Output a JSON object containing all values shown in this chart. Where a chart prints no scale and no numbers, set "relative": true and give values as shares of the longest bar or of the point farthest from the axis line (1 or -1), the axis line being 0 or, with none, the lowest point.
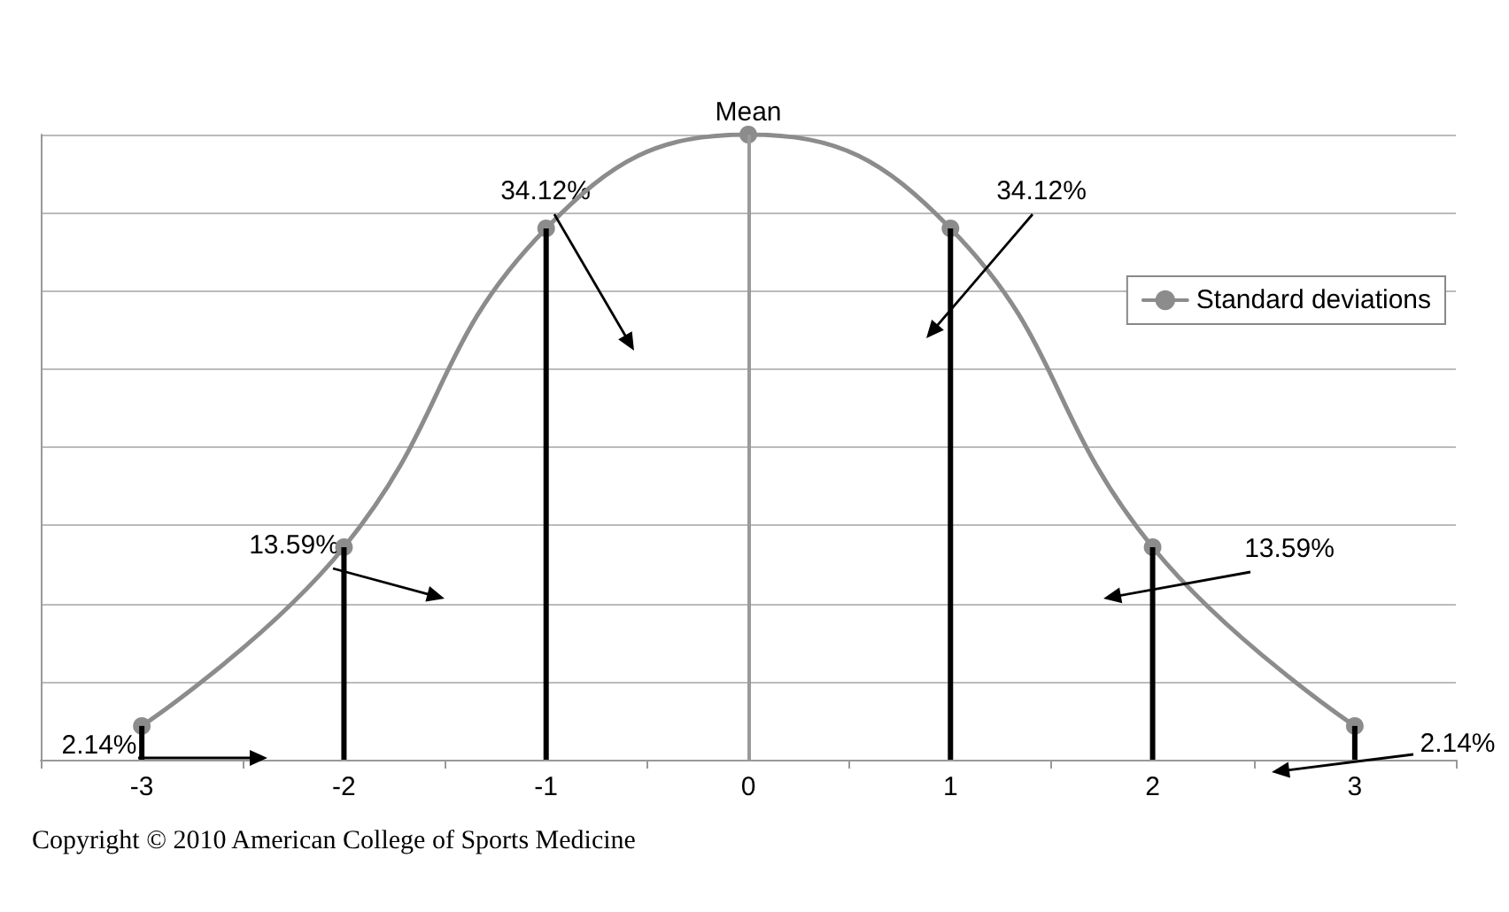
{
  "chart_data": {
    "type": "line",
    "relative": true,
    "categories": [
      "-3",
      "-2",
      "-1",
      "0",
      "1",
      "2",
      "3"
    ],
    "series": [
      {
        "name": "Standard deviations",
        "color": "#8c8c8c",
        "values": [
          0.054,
          0.34,
          0.85,
          1,
          0.85,
          0.34,
          0.054
        ]
      },
      {
        "type": "bar",
        "color": "#000000",
        "values": [
          0.054,
          0.34,
          0.85,
          null,
          0.85,
          0.34,
          0.054
        ]
      }
    ],
    "ref_lines": [
      {
        "axis": "x",
        "value": "0",
        "label": "Mean",
        "color": "#9a9a9a"
      }
    ],
    "annotations": [
      "34.12%",
      "34.12%",
      "13.59%",
      "13.59%",
      "2.14%",
      "2.14%",
      "Copyright © 2010 American College of Sports Medicine"
    ],
    "grid": "y",
    "legend": "right",
    "marker": "circle",
    "line_style": "solid"
  }
}
